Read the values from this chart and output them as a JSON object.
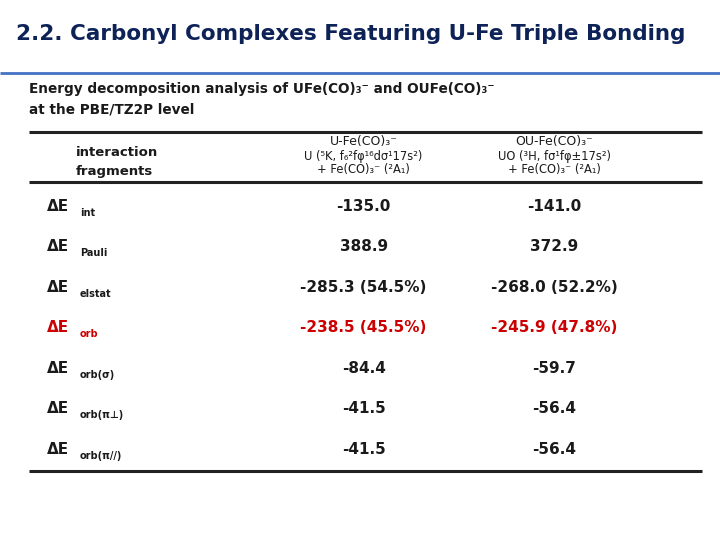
{
  "title": "2.2. Carbonyl Complexes Featuring U-Fe Triple Bonding",
  "subtitle_line1": "Energy decomposition analysis of UFe(CO)₃⁻ and OUFe(CO)₃⁻",
  "subtitle_line2": "at the PBE/TZ2P level",
  "title_color": "#0d2257",
  "black_color": "#1a1a1a",
  "red_color": "#cc0000",
  "dark_blue": "#0d2257",
  "bg_color": "#ffffff",
  "line_color": "#222222",
  "col1_header_line1": "U-Fe(CO)₃⁻",
  "col1_header_line2": "U (⁵K, f₆²fφ¹⁶dσ¹17s²)",
  "col1_header_line3": "+ Fe(CO)₃⁻ (²A₁)",
  "col2_header_line1": "OU-Fe(CO)₃⁻",
  "col2_header_line2": "UO (³H, fσ¹fφ±17s²)",
  "col2_header_line3": "+ Fe(CO)₃⁻ (²A₁)",
  "table_rows": [
    [
      "int",
      "-135.0",
      "-141.0",
      false
    ],
    [
      "Pauli",
      "388.9",
      "372.9",
      false
    ],
    [
      "elstat",
      "-285.3 (54.5%)",
      "-268.0 (52.2%)",
      false
    ],
    [
      "orb",
      "-238.5 (45.5%)",
      "-245.9 (47.8%)",
      true
    ],
    [
      "orb(σ)",
      "-84.4",
      "-59.7",
      false
    ],
    [
      "orb(π⊥)",
      "-41.5",
      "-56.4",
      false
    ],
    [
      "orb(π//)",
      "-41.5",
      "-56.4",
      false
    ]
  ]
}
